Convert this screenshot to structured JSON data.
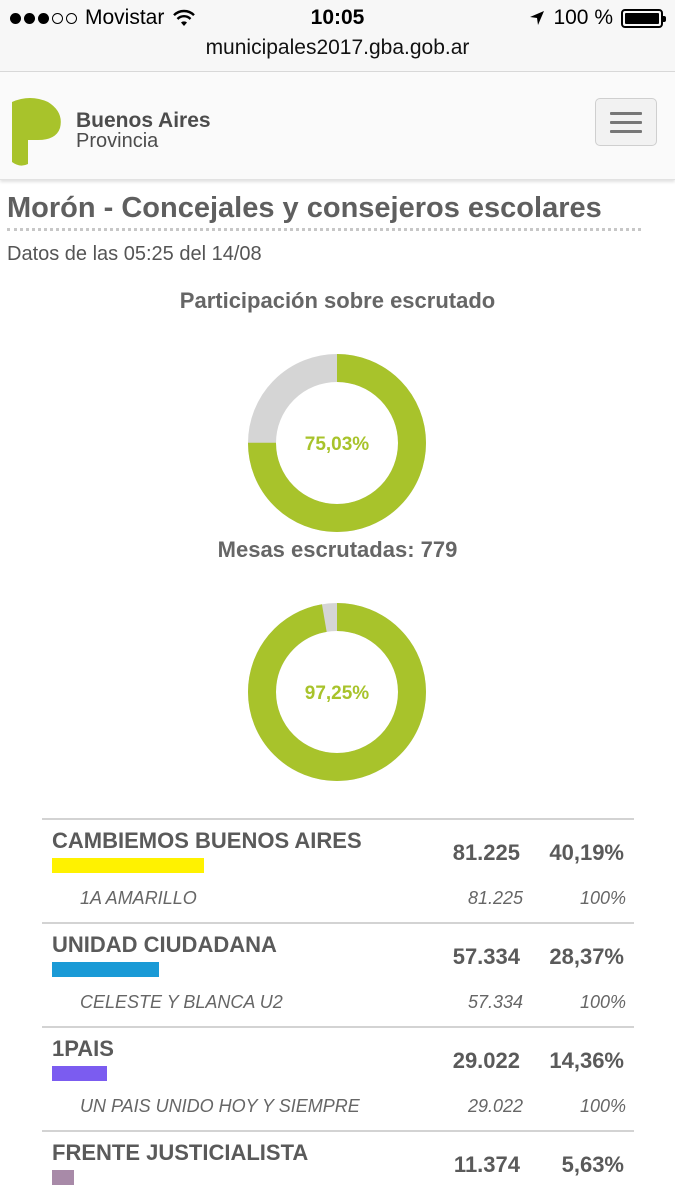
{
  "status_bar": {
    "carrier": "Movistar",
    "time": "10:05",
    "battery": "100 %",
    "url": "municipales2017.gba.gob.ar"
  },
  "header": {
    "brand_line1": "Buenos Aires",
    "brand_line2": "Provincia",
    "logo_color": "#a8c32b"
  },
  "page": {
    "title": "Morón - Concejales y consejeros escolares",
    "updated": "Datos de las 05:25 del 14/08"
  },
  "participation": {
    "heading": "Participación sobre escrutado",
    "percent_label": "75,03%",
    "fraction": 0.7503
  },
  "tables_counted": {
    "heading": "Mesas escrutadas: 779",
    "percent_label": "97,25%",
    "fraction": 0.9725
  },
  "colors": {
    "accent": "#a8c32b",
    "remainder": "#d5d5d5"
  },
  "results": [
    {
      "party": "CAMBIEMOS BUENOS AIRES",
      "votes": "81.225",
      "percent": "40,19%",
      "color": "#fff200",
      "lists": [
        {
          "name": "1A AMARILLO",
          "votes": "81.225",
          "percent": "100%"
        }
      ]
    },
    {
      "party": "UNIDAD CIUDADANA",
      "votes": "57.334",
      "percent": "28,37%",
      "color": "#1a9ad6",
      "lists": [
        {
          "name": "CELESTE Y BLANCA U2",
          "votes": "57.334",
          "percent": "100%"
        }
      ]
    },
    {
      "party": "1PAIS",
      "votes": "29.022",
      "percent": "14,36%",
      "color": "#7b5cf0",
      "lists": [
        {
          "name": "UN PAIS UNIDO HOY Y SIEMPRE",
          "votes": "29.022",
          "percent": "100%"
        }
      ]
    },
    {
      "party": "FRENTE JUSTICIALISTA",
      "votes": "11.374",
      "percent": "5,63%",
      "color": "#a88aa8",
      "lists": []
    }
  ]
}
